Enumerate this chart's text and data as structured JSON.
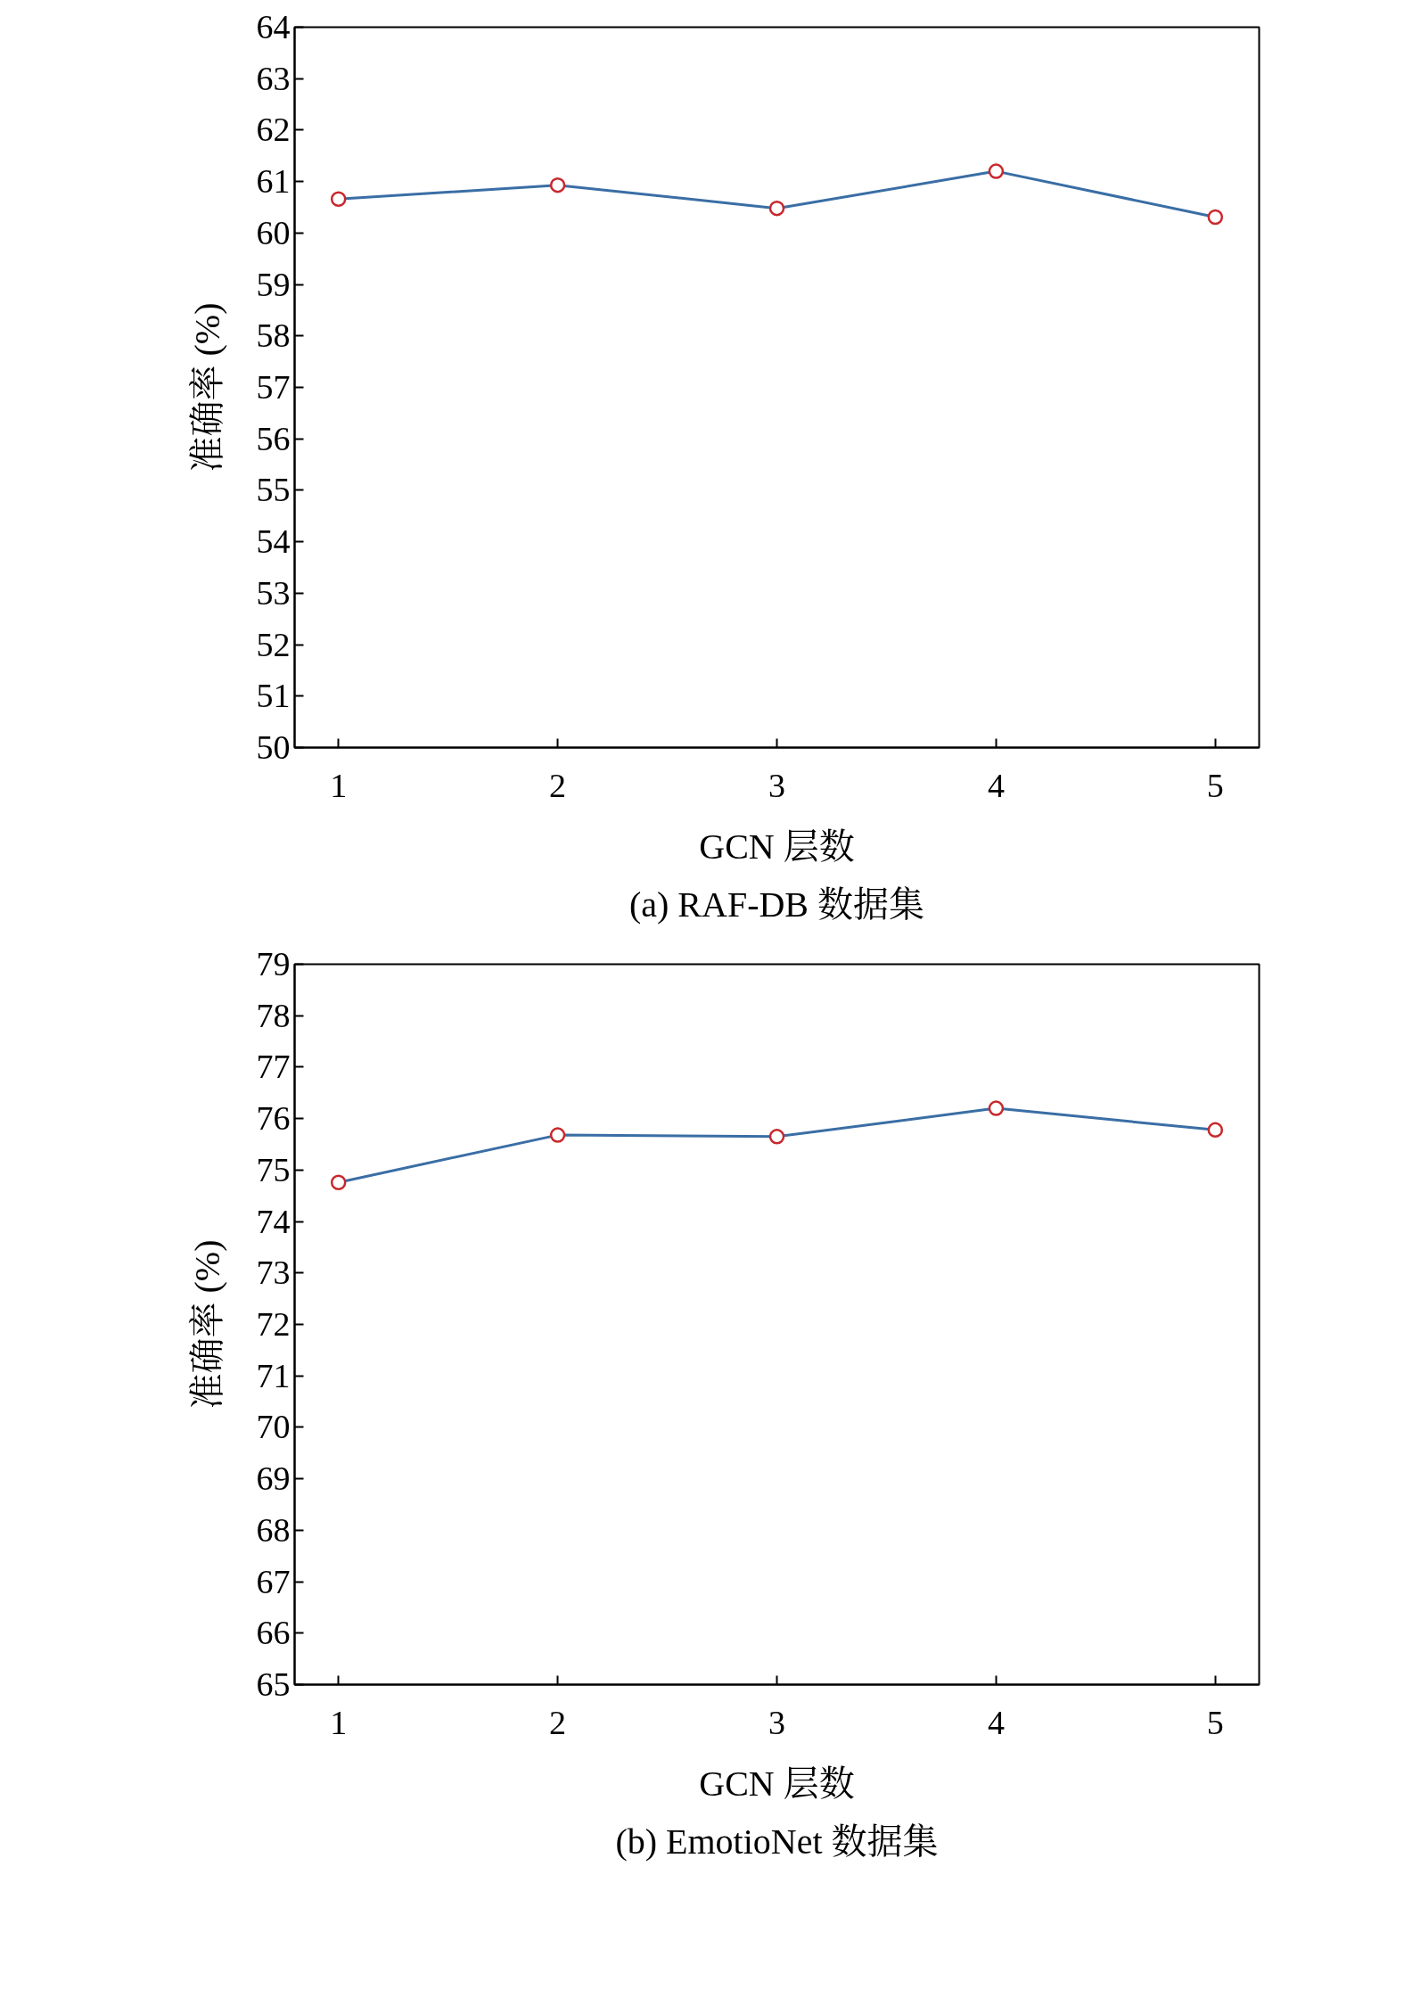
{
  "chart_data": [
    {
      "type": "line",
      "x": [
        1,
        2,
        3,
        4,
        5
      ],
      "series": [
        {
          "color": "#3a6ea5",
          "values": [
            60.66,
            60.93,
            60.48,
            61.2,
            60.31
          ]
        }
      ],
      "xlabel": "GCN 层数",
      "ylabel": "准确率 (%)",
      "annotations": [
        "(a) RAF-DB 数据集"
      ],
      "xlim": [
        0.8,
        5.2
      ],
      "xticks": [
        1,
        2,
        3,
        4,
        5
      ],
      "ylim": [
        50,
        64
      ],
      "yticks": [
        50,
        51,
        52,
        53,
        54,
        55,
        56,
        57,
        58,
        59,
        60,
        61,
        62,
        63,
        64
      ],
      "marker": "circle",
      "line_style": "solid"
    },
    {
      "type": "line",
      "x": [
        1,
        2,
        3,
        4,
        5
      ],
      "series": [
        {
          "color": "#3a6ea5",
          "values": [
            74.76,
            75.68,
            75.65,
            76.2,
            75.78
          ]
        }
      ],
      "xlabel": "GCN 层数",
      "ylabel": "准确率 (%)",
      "annotations": [
        "(b) EmotioNet 数据集"
      ],
      "xlim": [
        0.8,
        5.2
      ],
      "xticks": [
        1,
        2,
        3,
        4,
        5
      ],
      "ylim": [
        65,
        79
      ],
      "yticks": [
        65,
        66,
        67,
        68,
        69,
        70,
        71,
        72,
        73,
        74,
        75,
        76,
        77,
        78,
        79
      ],
      "marker": "circle",
      "line_style": "solid"
    }
  ]
}
